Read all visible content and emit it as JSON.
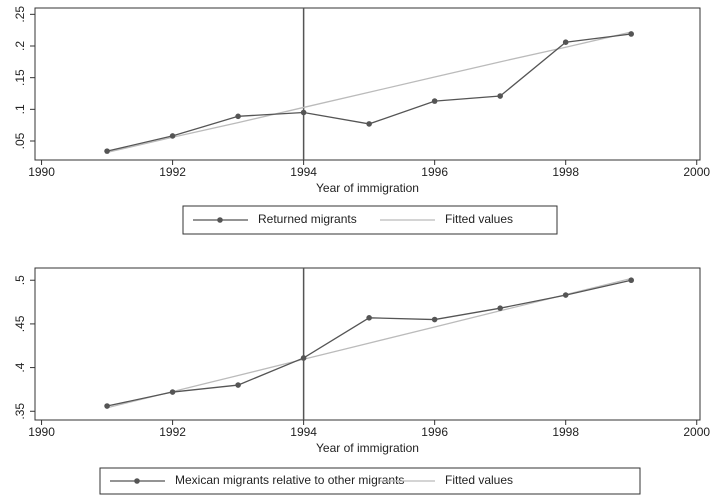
{
  "chart_data": [
    {
      "type": "line",
      "x": [
        1991,
        1992,
        1993,
        1994,
        1995,
        1996,
        1997,
        1998,
        1999
      ],
      "series": [
        {
          "name": "Returned migrants",
          "color": "#555555",
          "marker": true,
          "values": [
            0.034,
            0.058,
            0.089,
            0.095,
            0.077,
            0.113,
            0.121,
            0.206,
            0.219
          ]
        },
        {
          "name": "Fitted values",
          "color": "#bbbbbb",
          "marker": false,
          "values": [
            0.032,
            0.056,
            0.079,
            0.103,
            0.127,
            0.151,
            0.175,
            0.198,
            0.222
          ]
        }
      ],
      "xlabel": "Year of immigration",
      "xlim": [
        1989.9,
        2000.05
      ],
      "xticks": [
        1990,
        1992,
        1994,
        1996,
        1998,
        2000
      ],
      "ylim": [
        0.02,
        0.26
      ],
      "yticks": [
        {
          "value": 0.05,
          "label": ".05"
        },
        {
          "value": 0.1,
          "label": ".1"
        },
        {
          "value": 0.15,
          "label": ".15"
        },
        {
          "value": 0.2,
          "label": ".2"
        },
        {
          "value": 0.25,
          "label": ".25"
        }
      ],
      "vline": 1994,
      "grid": false,
      "legend": "bottom"
    },
    {
      "type": "line",
      "x": [
        1991,
        1992,
        1993,
        1994,
        1995,
        1996,
        1997,
        1998,
        1999
      ],
      "series": [
        {
          "name": "Mexican migrants relative to other migrants",
          "color": "#555555",
          "marker": true,
          "values": [
            0.356,
            0.372,
            0.38,
            0.411,
            0.457,
            0.455,
            0.468,
            0.483,
            0.5
          ]
        },
        {
          "name": "Fitted values",
          "color": "#bbbbbb",
          "marker": false,
          "values": [
            0.354,
            0.3725,
            0.391,
            0.4095,
            0.428,
            0.4465,
            0.465,
            0.4835,
            0.502
          ]
        }
      ],
      "xlabel": "Year of immigration",
      "xlim": [
        1989.9,
        2000.05
      ],
      "xticks": [
        1990,
        1992,
        1994,
        1996,
        1998,
        2000
      ],
      "ylim": [
        0.34,
        0.514
      ],
      "yticks": [
        {
          "value": 0.35,
          "label": ".35"
        },
        {
          "value": 0.4,
          "label": ".4"
        },
        {
          "value": 0.45,
          "label": ".45"
        },
        {
          "value": 0.5,
          "label": ".5"
        }
      ],
      "vline": 1994,
      "grid": false,
      "legend": "bottom"
    }
  ]
}
